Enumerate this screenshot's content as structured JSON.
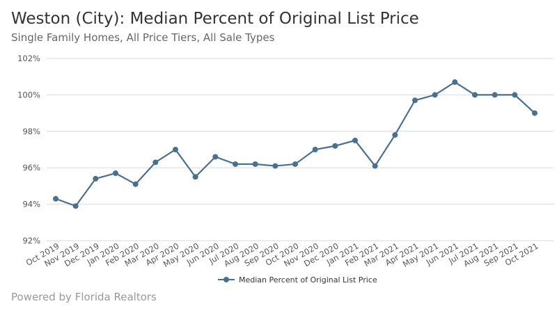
{
  "title": "Weston (City): Median Percent of Original List Price",
  "subtitle": "Single Family Homes, All Price Tiers, All Sale Types",
  "footer": "Powered by Florida Realtors",
  "chart_data": {
    "type": "line",
    "title": "Weston (City): Median Percent of Original List Price",
    "subtitle": "Single Family Homes, All Price Tiers, All Sale Types",
    "categories": [
      "Oct 2019",
      "Nov 2019",
      "Dec 2019",
      "Jan 2020",
      "Feb 2020",
      "Mar 2020",
      "Apr 2020",
      "May 2020",
      "Jun 2020",
      "Jul 2020",
      "Aug 2020",
      "Sep 2020",
      "Oct 2020",
      "Nov 2020",
      "Dec 2020",
      "Jan 2021",
      "Feb 2021",
      "Mar 2021",
      "Apr 2021",
      "May 2021",
      "Jun 2021",
      "Jul 2021",
      "Aug 2021",
      "Sep 2021",
      "Oct 2021"
    ],
    "series": [
      {
        "name": "Median Percent of Original List Price",
        "color": "#4a7090",
        "values": [
          94.3,
          93.9,
          95.4,
          95.7,
          95.1,
          96.3,
          97.0,
          95.5,
          96.6,
          96.2,
          96.2,
          96.1,
          96.2,
          97.0,
          97.2,
          97.5,
          96.1,
          97.8,
          99.7,
          100.0,
          100.7,
          100.0,
          100.0,
          100.0,
          99.0
        ]
      }
    ],
    "ylim": [
      92,
      102
    ],
    "yticks": [
      92,
      94,
      96,
      98,
      100,
      102
    ],
    "ytick_labels": [
      "92%",
      "94%",
      "96%",
      "98%",
      "100%",
      "102%"
    ],
    "grid": true,
    "legend": "bottom"
  }
}
